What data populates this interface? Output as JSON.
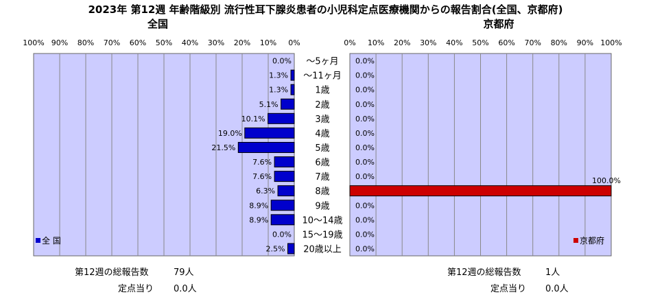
{
  "title": "2023年 第12週 年齢階級別 流行性耳下腺炎患者の小児科定点医療機関からの報告割合(全国、京都府)",
  "colors": {
    "plot_bg": "#ccccff",
    "national_bar": "#0000cc",
    "kyoto_bar": "#cc0000",
    "grid": "#888888"
  },
  "chart_data": [
    {
      "type": "bar",
      "orientation": "horizontal-reversed",
      "title": "全国",
      "categories": [
        "～5ヶ月",
        "～11ヶ月",
        "1歳",
        "2歳",
        "3歳",
        "4歳",
        "5歳",
        "6歳",
        "7歳",
        "8歳",
        "9歳",
        "10～14歳",
        "15～19歳",
        "20歳以上"
      ],
      "series": [
        {
          "name": "全 国",
          "values": [
            0.0,
            1.3,
            1.3,
            5.1,
            10.1,
            19.0,
            21.5,
            7.6,
            7.6,
            6.3,
            8.9,
            8.9,
            0.0,
            2.5
          ]
        }
      ],
      "value_labels": [
        "0.0%",
        "1.3%",
        "1.3%",
        "5.1%",
        "10.1%",
        "19.0%",
        "21.5%",
        "7.6%",
        "7.6%",
        "6.3%",
        "8.9%",
        "8.9%",
        "0.0%",
        "2.5%"
      ],
      "xlim": [
        0,
        100
      ],
      "ticks": [
        "100%",
        "90%",
        "80%",
        "70%",
        "60%",
        "50%",
        "40%",
        "30%",
        "20%",
        "10%",
        "0%"
      ],
      "grid": true,
      "legend_position": "bottom-left"
    },
    {
      "type": "bar",
      "orientation": "horizontal",
      "title": "京都府",
      "categories": [
        "～5ヶ月",
        "～11ヶ月",
        "1歳",
        "2歳",
        "3歳",
        "4歳",
        "5歳",
        "6歳",
        "7歳",
        "8歳",
        "9歳",
        "10～14歳",
        "15～19歳",
        "20歳以上"
      ],
      "series": [
        {
          "name": "京都府",
          "values": [
            0.0,
            0.0,
            0.0,
            0.0,
            0.0,
            0.0,
            0.0,
            0.0,
            0.0,
            100.0,
            0.0,
            0.0,
            0.0,
            0.0
          ]
        }
      ],
      "value_labels": [
        "0.0%",
        "0.0%",
        "0.0%",
        "0.0%",
        "0.0%",
        "0.0%",
        "0.0%",
        "0.0%",
        "0.0%",
        "100.0%",
        "0.0%",
        "0.0%",
        "0.0%",
        "0.0%"
      ],
      "xlim": [
        0,
        100
      ],
      "ticks": [
        "0%",
        "10%",
        "20%",
        "30%",
        "40%",
        "50%",
        "60%",
        "70%",
        "80%",
        "90%",
        "100%"
      ],
      "grid": true,
      "legend_position": "bottom-right"
    }
  ],
  "stats": {
    "national_total_label": "第12週の総報告数",
    "national_total_value": "79人",
    "national_per_label": "定点当り",
    "national_per_value": "0.0人",
    "kyoto_total_label": "第12週の総報告数",
    "kyoto_total_value": "1人",
    "kyoto_per_label": "定点当り",
    "kyoto_per_value": "0.0人"
  }
}
